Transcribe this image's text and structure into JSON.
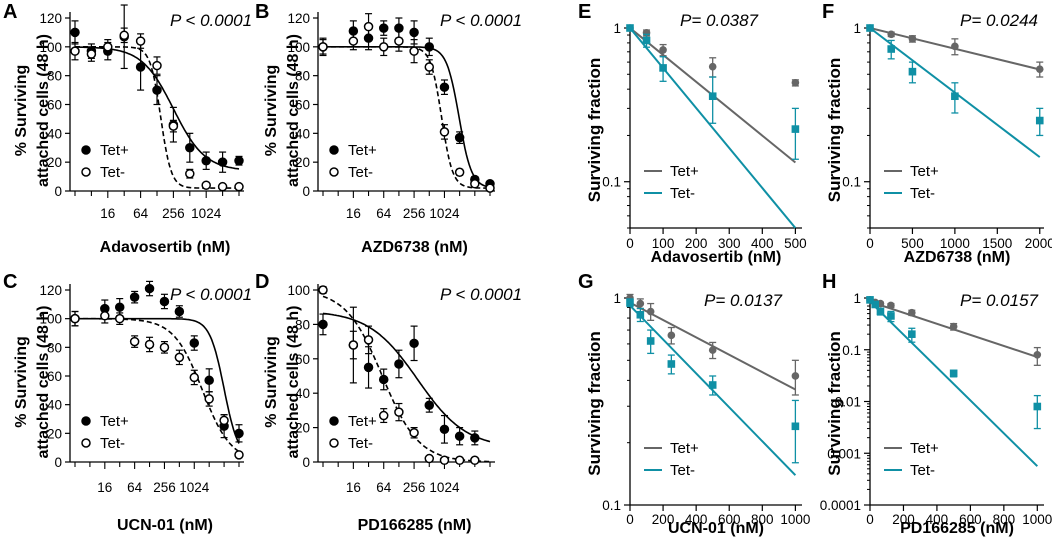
{
  "chart_data": [
    {
      "panel": "A",
      "type": "scatter",
      "scale": "log2-dose",
      "title": "",
      "pvalue": "P < 0.0001",
      "xlabel": "Adavosertib (nM)",
      "ylabel": [
        "% Surviving",
        "attached cells (48 h)"
      ],
      "xticks": [
        16,
        64,
        256,
        1024
      ],
      "xtick_labels": [
        "16",
        "64",
        "256",
        "1024"
      ],
      "yticks": [
        0,
        20,
        40,
        60,
        80,
        100,
        120
      ],
      "ylim": [
        0,
        120
      ],
      "legend": [
        "Tet+",
        "Tet-"
      ],
      "series": [
        {
          "name": "Tet+",
          "marker": "filled",
          "curve": "solid",
          "x": [
            4,
            8,
            16,
            32,
            64,
            128,
            256,
            512,
            1024,
            2048,
            4096
          ],
          "y": [
            110,
            97,
            97,
            107,
            86,
            70,
            46,
            30,
            21,
            20,
            21
          ],
          "err": [
            8,
            5,
            6,
            22,
            16,
            10,
            12,
            10,
            6,
            7,
            3
          ],
          "fit": {
            "top": 100,
            "bottom": 14,
            "ec50": 256,
            "hill": 1.5
          }
        },
        {
          "name": "Tet-",
          "marker": "open",
          "curve": "dashed",
          "x": [
            4,
            8,
            16,
            32,
            64,
            128,
            256,
            512,
            1024,
            2048,
            4096
          ],
          "y": [
            97,
            95,
            100,
            108,
            104,
            87,
            45,
            12,
            4,
            3,
            3
          ],
          "err": [
            6,
            5,
            5,
            5,
            5,
            6,
            4,
            3,
            1,
            1,
            1
          ],
          "fit": {
            "top": 100,
            "bottom": 2,
            "ec50": 150,
            "hill": 4.5
          }
        }
      ]
    },
    {
      "panel": "B",
      "type": "scatter",
      "scale": "log2-dose",
      "title": "",
      "pvalue": "P < 0.0001",
      "xlabel": "AZD6738 (nM)",
      "ylabel": [
        "% Surviving",
        "attached cells (48 h)"
      ],
      "xticks": [
        16,
        64,
        256,
        1024
      ],
      "xtick_labels": [
        "16",
        "64",
        "256",
        "1024"
      ],
      "yticks": [
        0,
        20,
        40,
        60,
        80,
        100,
        120
      ],
      "ylim": [
        0,
        120
      ],
      "legend": [
        "Tet+",
        "Tet-"
      ],
      "series": [
        {
          "name": "Tet+",
          "marker": "filled",
          "curve": "solid",
          "x": [
            4,
            16,
            32,
            64,
            128,
            256,
            512,
            1024,
            2048,
            4096,
            8192
          ],
          "y": [
            100,
            111,
            106,
            113,
            113,
            110,
            100,
            72,
            37,
            8,
            5
          ],
          "err": [
            5,
            7,
            8,
            5,
            7,
            8,
            6,
            5,
            4,
            2,
            1
          ],
          "fit": {
            "top": 100,
            "bottom": 2,
            "ec50": 2000,
            "hill": 3.5
          }
        },
        {
          "name": "Tet-",
          "marker": "open",
          "curve": "dashed",
          "x": [
            4,
            16,
            32,
            64,
            128,
            256,
            512,
            1024,
            2048,
            4096,
            8192
          ],
          "y": [
            100,
            104,
            114,
            100,
            104,
            97,
            86,
            41,
            13,
            5,
            2
          ],
          "err": [
            6,
            6,
            9,
            6,
            7,
            8,
            5,
            5,
            2,
            1,
            1
          ],
          "fit": {
            "top": 100,
            "bottom": 2,
            "ec50": 900,
            "hill": 4
          }
        }
      ]
    },
    {
      "panel": "C",
      "type": "scatter",
      "scale": "log2-dose",
      "title": "",
      "pvalue": "P < 0.0001",
      "xlabel": "UCN-01 (nM)",
      "ylabel": [
        "% Surviving",
        "attached cells (48 h)"
      ],
      "xticks": [
        16,
        64,
        256,
        1024
      ],
      "xtick_labels": [
        "16",
        "64",
        "256",
        "1024"
      ],
      "yticks": [
        0,
        20,
        40,
        60,
        80,
        100,
        120
      ],
      "ylim": [
        0,
        120
      ],
      "legend": [
        "Tet+",
        "Tet-"
      ],
      "series": [
        {
          "name": "Tet+",
          "marker": "filled",
          "curve": "solid",
          "x": [
            4,
            16,
            32,
            64,
            128,
            256,
            512,
            1024,
            2048,
            4096,
            8192
          ],
          "y": [
            100,
            107,
            108,
            115,
            121,
            112,
            105,
            83,
            57,
            25,
            20
          ],
          "err": [
            5,
            6,
            6,
            4,
            5,
            5,
            4,
            5,
            8,
            8,
            6
          ],
          "fit": {
            "top": 100,
            "bottom": 2,
            "ec50": 4100,
            "hill": 3.0
          }
        },
        {
          "name": "Tet-",
          "marker": "open",
          "curve": "dashed",
          "x": [
            4,
            16,
            32,
            64,
            128,
            256,
            512,
            1024,
            2048,
            4096,
            8192
          ],
          "y": [
            100,
            102,
            100,
            84,
            82,
            80,
            73,
            59,
            44,
            29,
            5
          ],
          "err": [
            5,
            5,
            4,
            4,
            5,
            4,
            5,
            5,
            5,
            4,
            1
          ],
          "fit": {
            "top": 100,
            "bottom": 0,
            "ec50": 1500,
            "hill": 1.5
          }
        }
      ]
    },
    {
      "panel": "D",
      "type": "scatter",
      "scale": "log2-dose",
      "title": "",
      "pvalue": "P < 0.0001",
      "xlabel": "PD166285 (nM)",
      "ylabel": [
        "% Surviving",
        "attached cells (48 h)"
      ],
      "xticks": [
        16,
        64,
        256,
        1024
      ],
      "xtick_labels": [
        "16",
        "64",
        "256",
        "1024"
      ],
      "yticks": [
        0,
        20,
        40,
        60,
        80,
        100
      ],
      "ylim": [
        0,
        100
      ],
      "legend": [
        "Tet+",
        "Tet-"
      ],
      "series": [
        {
          "name": "Tet+",
          "marker": "filled",
          "curve": "solid",
          "x": [
            4,
            16,
            32,
            64,
            128,
            256,
            512,
            1024,
            2048,
            4096
          ],
          "y": [
            80,
            68,
            55,
            48,
            57,
            69,
            33,
            19,
            15,
            14
          ],
          "err": [
            6,
            22,
            12,
            6,
            8,
            10,
            4,
            8,
            5,
            4
          ],
          "fit": {
            "top": 88,
            "bottom": 8,
            "ec50": 300,
            "hill": 0.9
          }
        },
        {
          "name": "Tet-",
          "marker": "open",
          "curve": "dashed",
          "x": [
            4,
            16,
            32,
            64,
            128,
            256,
            512,
            1024,
            2048,
            4096
          ],
          "y": [
            100,
            68,
            71,
            27,
            29,
            17,
            2,
            1,
            1,
            1
          ],
          "err": [
            2,
            8,
            8,
            4,
            5,
            3,
            1,
            1,
            1,
            1
          ],
          "fit": {
            "top": 100,
            "bottom": 0,
            "ec50": 60,
            "hill": 1.2
          }
        }
      ]
    },
    {
      "panel": "E",
      "type": "scatter",
      "scale": "semilog",
      "title": "",
      "pvalue": "P= 0.0387",
      "xlabel": "Adavosertib (nM)",
      "ylabel": "Surviving fraction",
      "xlim": [
        0,
        520
      ],
      "xticks": [
        0,
        100,
        200,
        300,
        400,
        500
      ],
      "xtick_labels": [
        "0",
        "100",
        "200",
        "300",
        "400",
        "500"
      ],
      "ylim": [
        0.05,
        1
      ],
      "yticks": [
        0.1,
        1
      ],
      "ytick_labels": [
        "0.1",
        "1"
      ],
      "legend": [
        "Tet+",
        "Tet-"
      ],
      "series": [
        {
          "name": "Tet+",
          "color": "#666666",
          "marker": "circle",
          "x": [
            0,
            50,
            100,
            250,
            500
          ],
          "y": [
            1.0,
            0.93,
            0.72,
            0.56,
            0.44
          ],
          "err": [
            0.03,
            0.04,
            0.06,
            0.08,
            0.02
          ],
          "fit": {
            "y0": 1.0,
            "slope_per_nM": -0.00175
          }
        },
        {
          "name": "Tet-",
          "color": "#0f90a5",
          "marker": "square",
          "x": [
            0,
            50,
            100,
            250,
            500
          ],
          "y": [
            1.0,
            0.83,
            0.55,
            0.36,
            0.22
          ],
          "err": [
            0.03,
            0.08,
            0.1,
            0.12,
            0.08
          ],
          "fit": {
            "y0": 1.0,
            "slope_per_nM": -0.0039
          }
        }
      ]
    },
    {
      "panel": "F",
      "type": "scatter",
      "scale": "semilog",
      "title": "",
      "pvalue": "P= 0.0244",
      "xlabel": "AZD6738 (nM)",
      "ylabel": "Surviving fraction",
      "xlim": [
        0,
        2050
      ],
      "xticks": [
        0,
        500,
        1000,
        1500,
        2000
      ],
      "xtick_labels": [
        "0",
        "500",
        "1000",
        "1500",
        "2000"
      ],
      "ylim": [
        0.05,
        1
      ],
      "yticks": [
        0.1,
        1
      ],
      "ytick_labels": [
        "0.1",
        "1"
      ],
      "legend": [
        "Tet+",
        "Tet-"
      ],
      "series": [
        {
          "name": "Tet+",
          "color": "#666666",
          "marker": "circle",
          "x": [
            0,
            250,
            500,
            1000,
            2000
          ],
          "y": [
            1.0,
            0.91,
            0.85,
            0.76,
            0.54
          ],
          "err": [
            0.03,
            0.03,
            0.04,
            0.09,
            0.06
          ],
          "fit": {
            "y0": 1.0,
            "slope_per_nM": -0.000135
          }
        },
        {
          "name": "Tet-",
          "color": "#0f90a5",
          "marker": "square",
          "x": [
            0,
            250,
            500,
            1000,
            2000
          ],
          "y": [
            1.0,
            0.73,
            0.52,
            0.36,
            0.25
          ],
          "err": [
            0.03,
            0.1,
            0.08,
            0.08,
            0.05
          ],
          "fit": {
            "y0": 1.0,
            "slope_per_nM": -0.00042
          }
        }
      ]
    },
    {
      "panel": "G",
      "type": "scatter",
      "scale": "semilog",
      "title": "",
      "pvalue": "P= 0.0137",
      "xlabel": "UCN-01 (nM)",
      "ylabel": "Surviving fraction",
      "xlim": [
        0,
        1040
      ],
      "xticks": [
        0,
        200,
        400,
        600,
        800,
        1000
      ],
      "xtick_labels": [
        "0",
        "200",
        "400",
        "600",
        "800",
        "1000"
      ],
      "ylim": [
        0.1,
        1
      ],
      "yticks": [
        0.1,
        1
      ],
      "ytick_labels": [
        "0.1",
        "1"
      ],
      "legend": [
        "Tet+",
        "Tet-"
      ],
      "series": [
        {
          "name": "Tet+",
          "color": "#666666",
          "marker": "circle",
          "x": [
            0,
            62.5,
            125,
            250,
            500,
            1000
          ],
          "y": [
            1.0,
            0.94,
            0.86,
            0.66,
            0.56,
            0.42
          ],
          "err": [
            0.04,
            0.05,
            0.08,
            0.06,
            0.05,
            0.08
          ],
          "fit": {
            "y0": 0.95,
            "slope_per_nM": -0.00042
          }
        },
        {
          "name": "Tet-",
          "color": "#0f90a5",
          "marker": "square",
          "x": [
            0,
            62.5,
            125,
            250,
            500,
            1000
          ],
          "y": [
            0.95,
            0.83,
            0.62,
            0.48,
            0.38,
            0.24
          ],
          "err": [
            0.04,
            0.06,
            0.08,
            0.05,
            0.04,
            0.08
          ],
          "fit": {
            "y0": 0.92,
            "slope_per_nM": -0.00082
          }
        }
      ]
    },
    {
      "panel": "H",
      "type": "scatter",
      "scale": "semilog",
      "title": "",
      "pvalue": "P= 0.0157",
      "xlabel": "PD166285 (nM)",
      "ylabel": "Surviving fraction",
      "xlim": [
        0,
        1040
      ],
      "xticks": [
        0,
        200,
        400,
        600,
        800,
        1000
      ],
      "xtick_labels": [
        "0",
        "200",
        "400",
        "600",
        "800",
        "1000"
      ],
      "ylim": [
        0.0001,
        1
      ],
      "yticks": [
        0.0001,
        0.001,
        0.01,
        0.1,
        1
      ],
      "ytick_labels": [
        "0.0001",
        "0.001",
        "0.01",
        "0.1",
        "1"
      ],
      "legend": [
        "Tet+",
        "Tet-"
      ],
      "series": [
        {
          "name": "Tet+",
          "color": "#666666",
          "marker": "circle",
          "x": [
            0,
            31.25,
            62.5,
            125,
            250,
            500,
            1000
          ],
          "y": [
            0.92,
            0.82,
            0.78,
            0.72,
            0.52,
            0.28,
            0.08
          ],
          "err": [
            0.05,
            0.05,
            0.05,
            0.06,
            0.06,
            0.04,
            0.03
          ],
          "fit": {
            "y0": 0.85,
            "slope_per_nM": -0.00107
          }
        },
        {
          "name": "Tet-",
          "color": "#0f90a5",
          "marker": "square",
          "x": [
            0,
            31.25,
            62.5,
            125,
            250,
            500,
            1000
          ],
          "y": [
            0.92,
            0.75,
            0.55,
            0.45,
            0.2,
            0.035,
            0.008
          ],
          "err": [
            0.05,
            0.08,
            0.08,
            0.1,
            0.06,
            0.005,
            0.005
          ],
          "fit": {
            "y0": 0.85,
            "slope_per_nM": -0.00318
          }
        }
      ]
    }
  ]
}
